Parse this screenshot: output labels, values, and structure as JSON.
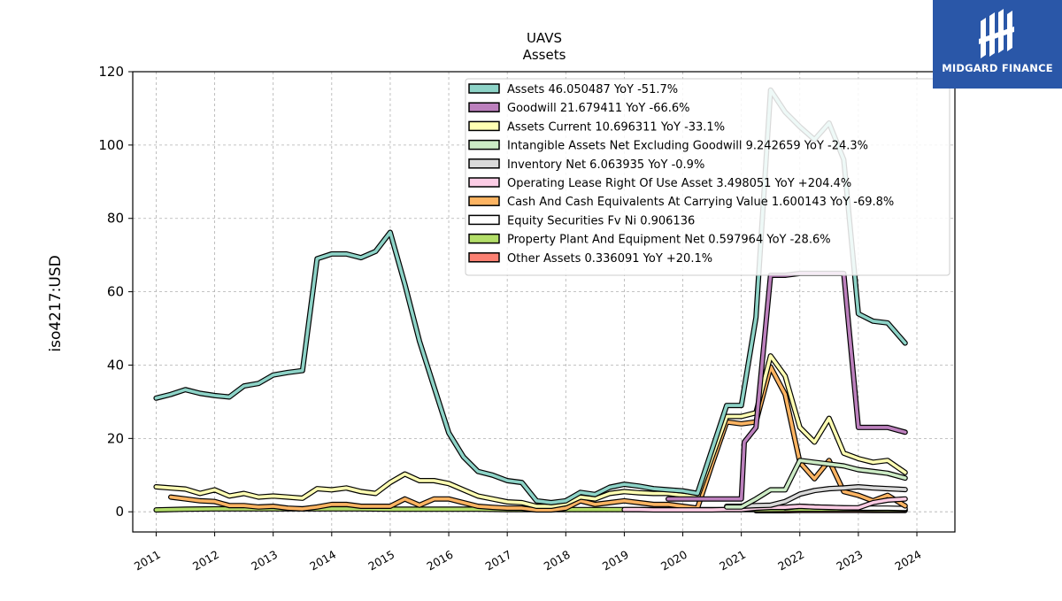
{
  "chart_data": {
    "type": "line",
    "title": "UAVS",
    "subtitle": "Assets",
    "ylabel": "iso4217:USD",
    "xlabel": "",
    "xlim": [
      2010.6,
      2024.65
    ],
    "ylim": [
      -5.5,
      120
    ],
    "yticks": [
      0,
      20,
      40,
      60,
      80,
      100,
      120
    ],
    "xticks": [
      "2011",
      "2012",
      "2013",
      "2014",
      "2015",
      "2016",
      "2017",
      "2018",
      "2019",
      "2020",
      "2021",
      "2022",
      "2023",
      "2024"
    ],
    "grid": true,
    "legend_position": "upper-right",
    "series": [
      {
        "name": "Assets",
        "legend": "Assets  46.050487 YoY -51.7%",
        "color": "#8dd3c7",
        "points": [
          [
            2011.0,
            31
          ],
          [
            2011.25,
            32
          ],
          [
            2011.5,
            33.3
          ],
          [
            2011.75,
            32.3
          ],
          [
            2012.0,
            31.7
          ],
          [
            2012.25,
            31.3
          ],
          [
            2012.5,
            34.3
          ],
          [
            2012.75,
            35
          ],
          [
            2013.0,
            37.3
          ],
          [
            2013.25,
            38
          ],
          [
            2013.5,
            38.5
          ],
          [
            2013.75,
            69
          ],
          [
            2014.0,
            70.3
          ],
          [
            2014.25,
            70.3
          ],
          [
            2014.5,
            69.3
          ],
          [
            2014.75,
            71
          ],
          [
            2015.0,
            76.2
          ],
          [
            2015.25,
            62
          ],
          [
            2015.5,
            46.5
          ],
          [
            2015.75,
            34
          ],
          [
            2016.0,
            21.5
          ],
          [
            2016.25,
            15
          ],
          [
            2016.5,
            11
          ],
          [
            2016.75,
            10
          ],
          [
            2017.0,
            8.5
          ],
          [
            2017.25,
            8
          ],
          [
            2017.5,
            3
          ],
          [
            2017.75,
            2.5
          ],
          [
            2018.0,
            3
          ],
          [
            2018.25,
            5.3
          ],
          [
            2018.5,
            4.7
          ],
          [
            2018.75,
            6.7
          ],
          [
            2019.0,
            7.5
          ],
          [
            2019.25,
            7
          ],
          [
            2019.5,
            6.3
          ],
          [
            2019.75,
            6
          ],
          [
            2020.0,
            5.7
          ],
          [
            2020.25,
            5
          ],
          [
            2020.5,
            17
          ],
          [
            2020.75,
            29
          ],
          [
            2021.0,
            29
          ],
          [
            2021.25,
            53
          ],
          [
            2021.5,
            115
          ],
          [
            2021.75,
            109
          ],
          [
            2022.0,
            105
          ],
          [
            2022.25,
            101.5
          ],
          [
            2022.5,
            106
          ],
          [
            2022.75,
            96
          ],
          [
            2023.0,
            54
          ],
          [
            2023.25,
            52
          ],
          [
            2023.5,
            51.5
          ],
          [
            2023.8,
            46
          ]
        ]
      },
      {
        "name": "Goodwill",
        "legend": "Goodwill  21.679411 YoY -66.6%",
        "color": "#bc80bd",
        "points": [
          [
            2019.75,
            3.5
          ],
          [
            2020.0,
            3.5
          ],
          [
            2020.25,
            3.5
          ],
          [
            2020.5,
            3.5
          ],
          [
            2020.75,
            3.5
          ],
          [
            2021.0,
            3.5
          ],
          [
            2021.05,
            19
          ],
          [
            2021.25,
            23
          ],
          [
            2021.5,
            64.5
          ],
          [
            2021.75,
            64.5
          ],
          [
            2022.0,
            65
          ],
          [
            2022.25,
            65
          ],
          [
            2022.5,
            65
          ],
          [
            2022.75,
            65
          ],
          [
            2023.0,
            23
          ],
          [
            2023.25,
            23
          ],
          [
            2023.5,
            23
          ],
          [
            2023.8,
            21.7
          ]
        ]
      },
      {
        "name": "Assets Current",
        "legend": "Assets Current  10.696311 YoY -33.1%",
        "color": "#ffffb3",
        "points": [
          [
            2011.0,
            6.8
          ],
          [
            2011.25,
            6.5
          ],
          [
            2011.5,
            6.2
          ],
          [
            2011.75,
            5
          ],
          [
            2012.0,
            6
          ],
          [
            2012.25,
            4.3
          ],
          [
            2012.5,
            5
          ],
          [
            2012.75,
            4
          ],
          [
            2013.0,
            4.3
          ],
          [
            2013.25,
            4
          ],
          [
            2013.5,
            3.7
          ],
          [
            2013.75,
            6.3
          ],
          [
            2014.0,
            6
          ],
          [
            2014.25,
            6.5
          ],
          [
            2014.5,
            5.5
          ],
          [
            2014.75,
            5
          ],
          [
            2015.0,
            8
          ],
          [
            2015.25,
            10.3
          ],
          [
            2015.5,
            8.5
          ],
          [
            2015.75,
            8.5
          ],
          [
            2016.0,
            7.7
          ],
          [
            2016.25,
            6
          ],
          [
            2016.5,
            4.3
          ],
          [
            2016.75,
            3.5
          ],
          [
            2017.0,
            2.7
          ],
          [
            2017.25,
            2.5
          ],
          [
            2017.5,
            1.5
          ],
          [
            2017.75,
            1.5
          ],
          [
            2018.0,
            2.2
          ],
          [
            2018.25,
            4
          ],
          [
            2018.5,
            3.5
          ],
          [
            2018.75,
            5
          ],
          [
            2019.0,
            5.5
          ],
          [
            2019.25,
            5.2
          ],
          [
            2019.5,
            5
          ],
          [
            2019.75,
            5
          ],
          [
            2020.0,
            4.5
          ],
          [
            2020.25,
            4
          ],
          [
            2020.5,
            15
          ],
          [
            2020.75,
            26
          ],
          [
            2021.0,
            26
          ],
          [
            2021.25,
            27
          ],
          [
            2021.5,
            42.5
          ],
          [
            2021.75,
            37
          ],
          [
            2022.0,
            23
          ],
          [
            2022.25,
            19
          ],
          [
            2022.5,
            25.5
          ],
          [
            2022.75,
            16
          ],
          [
            2023.0,
            14.5
          ],
          [
            2023.25,
            13.5
          ],
          [
            2023.5,
            14
          ],
          [
            2023.8,
            10.7
          ]
        ]
      },
      {
        "name": "Intangible Assets Net Excluding Goodwill",
        "legend": "Intangible Assets Net Excluding Goodwill  9.242659 YoY -24.3%",
        "color": "#ccebc5",
        "points": [
          [
            2020.75,
            1.3
          ],
          [
            2021.0,
            1.3
          ],
          [
            2021.25,
            3.5
          ],
          [
            2021.5,
            6
          ],
          [
            2021.75,
            6
          ],
          [
            2022.0,
            14
          ],
          [
            2022.25,
            13.5
          ],
          [
            2022.5,
            13
          ],
          [
            2022.75,
            12.5
          ],
          [
            2023.0,
            11.5
          ],
          [
            2023.25,
            11
          ],
          [
            2023.5,
            10.5
          ],
          [
            2023.8,
            9.2
          ]
        ]
      },
      {
        "name": "Inventory Net",
        "legend": "Inventory Net  6.063935 YoY -0.9%",
        "color": "#d9d9d9",
        "points": [
          [
            2020.75,
            1.5
          ],
          [
            2021.0,
            1.5
          ],
          [
            2021.25,
            1.7
          ],
          [
            2021.5,
            1.8
          ],
          [
            2021.75,
            2.8
          ],
          [
            2022.0,
            4.8
          ],
          [
            2022.25,
            5.8
          ],
          [
            2022.5,
            6.3
          ],
          [
            2022.75,
            6.5
          ],
          [
            2023.0,
            6.8
          ],
          [
            2023.25,
            6.5
          ],
          [
            2023.5,
            6.3
          ],
          [
            2023.8,
            6.06
          ]
        ]
      },
      {
        "name": "Operating Lease Right Of Use Asset",
        "legend": "Operating Lease Right Of Use Asset  3.498051 YoY +204.4%",
        "color": "#fccde5",
        "points": [
          [
            2019.0,
            0.6
          ],
          [
            2019.25,
            0.6
          ],
          [
            2019.5,
            0.5
          ],
          [
            2019.75,
            0.5
          ],
          [
            2020.0,
            0.5
          ],
          [
            2020.25,
            0.5
          ],
          [
            2020.5,
            0.5
          ],
          [
            2020.75,
            0.6
          ],
          [
            2021.0,
            0.6
          ],
          [
            2021.25,
            1
          ],
          [
            2021.5,
            1.2
          ],
          [
            2021.75,
            1.2
          ],
          [
            2022.0,
            1.5
          ],
          [
            2022.25,
            1.3
          ],
          [
            2022.5,
            1.2
          ],
          [
            2022.75,
            1.1
          ],
          [
            2023.0,
            1.1
          ],
          [
            2023.25,
            2.5
          ],
          [
            2023.5,
            3.2
          ],
          [
            2023.8,
            3.5
          ]
        ]
      },
      {
        "name": "Cash And Cash Equivalents At Carrying Value",
        "legend": "Cash And Cash Equivalents At Carrying Value  1.600143 YoY -69.8%",
        "color": "#fdb462",
        "points": [
          [
            2011.25,
            4
          ],
          [
            2011.5,
            3.5
          ],
          [
            2011.75,
            3
          ],
          [
            2012.0,
            2.8
          ],
          [
            2012.25,
            1.7
          ],
          [
            2012.5,
            1.7
          ],
          [
            2012.75,
            1.3
          ],
          [
            2013.0,
            1.5
          ],
          [
            2013.25,
            1
          ],
          [
            2013.5,
            0.8
          ],
          [
            2013.75,
            1.3
          ],
          [
            2014.0,
            2
          ],
          [
            2014.25,
            2
          ],
          [
            2014.5,
            1.5
          ],
          [
            2014.75,
            1.5
          ],
          [
            2015.0,
            1.5
          ],
          [
            2015.25,
            3.5
          ],
          [
            2015.5,
            1.8
          ],
          [
            2015.75,
            3.5
          ],
          [
            2016.0,
            3.5
          ],
          [
            2016.25,
            2.5
          ],
          [
            2016.5,
            1.5
          ],
          [
            2016.75,
            1.2
          ],
          [
            2017.0,
            1
          ],
          [
            2017.25,
            1
          ],
          [
            2017.5,
            0.5
          ],
          [
            2017.75,
            0.5
          ],
          [
            2018.0,
            1
          ],
          [
            2018.25,
            3
          ],
          [
            2018.5,
            2
          ],
          [
            2018.75,
            2.5
          ],
          [
            2019.0,
            3
          ],
          [
            2019.25,
            2.5
          ],
          [
            2019.5,
            2
          ],
          [
            2019.75,
            2
          ],
          [
            2020.0,
            1.5
          ],
          [
            2020.25,
            1
          ],
          [
            2020.5,
            13
          ],
          [
            2020.75,
            24.5
          ],
          [
            2021.0,
            24
          ],
          [
            2021.25,
            24.5
          ],
          [
            2021.5,
            39.5
          ],
          [
            2021.75,
            32
          ],
          [
            2022.0,
            13.5
          ],
          [
            2022.25,
            9
          ],
          [
            2022.5,
            14
          ],
          [
            2022.75,
            5.5
          ],
          [
            2023.0,
            4.5
          ],
          [
            2023.25,
            3
          ],
          [
            2023.5,
            4.5
          ],
          [
            2023.8,
            1.6
          ]
        ]
      },
      {
        "name": "Equity Securities Fv Ni",
        "legend": "Equity Securities Fv Ni  0.906136",
        "color": "#ffffff",
        "points": [
          [
            2021.75,
            1.1
          ],
          [
            2022.0,
            1.5
          ],
          [
            2022.25,
            1.3
          ],
          [
            2022.5,
            1.2
          ],
          [
            2022.75,
            1.1
          ],
          [
            2023.0,
            1
          ],
          [
            2023.25,
            1
          ],
          [
            2023.5,
            1
          ],
          [
            2023.8,
            0.9
          ]
        ]
      },
      {
        "name": "Property Plant And Equipment Net",
        "legend": "Property Plant And Equipment Net  0.597964 YoY -28.6%",
        "color": "#b3de69",
        "points": [
          [
            2011.0,
            0.5
          ],
          [
            2011.5,
            0.7
          ],
          [
            2012.0,
            0.8
          ],
          [
            2012.5,
            0.8
          ],
          [
            2013.0,
            0.8
          ],
          [
            2013.5,
            0.8
          ],
          [
            2014.0,
            0.8
          ],
          [
            2014.5,
            0.8
          ],
          [
            2015.0,
            0.7
          ],
          [
            2015.5,
            0.7
          ],
          [
            2016.0,
            0.7
          ],
          [
            2016.5,
            0.7
          ],
          [
            2017.0,
            0.6
          ],
          [
            2017.5,
            0.6
          ],
          [
            2018.0,
            0.6
          ],
          [
            2018.5,
            0.6
          ],
          [
            2019.0,
            0.6
          ],
          [
            2019.5,
            0.6
          ],
          [
            2020.0,
            0.6
          ],
          [
            2020.5,
            0.6
          ],
          [
            2021.0,
            0.6
          ],
          [
            2021.5,
            0.6
          ],
          [
            2022.0,
            0.7
          ],
          [
            2022.5,
            0.7
          ],
          [
            2023.0,
            0.7
          ],
          [
            2023.5,
            0.6
          ],
          [
            2023.8,
            0.6
          ]
        ]
      },
      {
        "name": "Other Assets",
        "legend": "Other Assets  0.336091 YoY +20.1%",
        "color": "#fb8072",
        "points": [
          [
            2021.25,
            0.3
          ],
          [
            2021.5,
            0.3
          ],
          [
            2021.75,
            0.3
          ],
          [
            2022.0,
            0.4
          ],
          [
            2022.25,
            0.4
          ],
          [
            2022.5,
            0.4
          ],
          [
            2022.75,
            0.4
          ],
          [
            2023.0,
            0.4
          ],
          [
            2023.25,
            0.35
          ],
          [
            2023.5,
            0.35
          ],
          [
            2023.8,
            0.34
          ]
        ]
      }
    ]
  },
  "logo": {
    "text": "MIDGARD FINANCE"
  }
}
